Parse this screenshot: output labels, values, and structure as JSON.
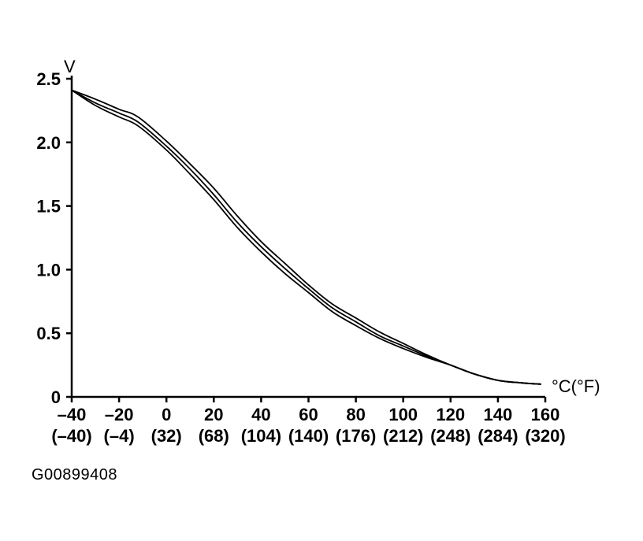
{
  "chart_data": {
    "type": "line",
    "y_unit": "V",
    "x_unit": "°C(°F)",
    "xlim": [
      -40,
      160
    ],
    "ylim": [
      0,
      2.5
    ],
    "x_ticks": [
      {
        "value": -40,
        "label": "–40",
        "sub": "(–40)"
      },
      {
        "value": -20,
        "label": "–20",
        "sub": "(–4)"
      },
      {
        "value": 0,
        "label": "0",
        "sub": "(32)"
      },
      {
        "value": 20,
        "label": "20",
        "sub": "(68)"
      },
      {
        "value": 40,
        "label": "40",
        "sub": "(104)"
      },
      {
        "value": 60,
        "label": "60",
        "sub": "(140)"
      },
      {
        "value": 80,
        "label": "80",
        "sub": "(176)"
      },
      {
        "value": 100,
        "label": "100",
        "sub": "(212)"
      },
      {
        "value": 120,
        "label": "120",
        "sub": "(248)"
      },
      {
        "value": 140,
        "label": "140",
        "sub": "(284)"
      },
      {
        "value": 160,
        "label": "160",
        "sub": "(320)"
      }
    ],
    "y_ticks": [
      {
        "value": 0,
        "label": "0"
      },
      {
        "value": 0.5,
        "label": "0.5"
      },
      {
        "value": 1.0,
        "label": "1.0"
      },
      {
        "value": 1.5,
        "label": "1.5"
      },
      {
        "value": 2.0,
        "label": "2.0"
      },
      {
        "value": 2.5,
        "label": "2.5"
      }
    ],
    "grid": false,
    "series": [
      {
        "x": [
          -40,
          -30,
          -20,
          -12,
          0,
          10,
          20,
          30,
          40,
          50,
          60,
          70,
          80,
          90,
          100,
          110,
          120,
          130,
          140,
          150,
          158
        ],
        "values": [
          2.41,
          2.34,
          2.26,
          2.2,
          2.01,
          1.83,
          1.64,
          1.42,
          1.22,
          1.05,
          0.88,
          0.73,
          0.62,
          0.51,
          0.42,
          0.33,
          0.25,
          0.18,
          0.13,
          0.11,
          0.1
        ]
      },
      {
        "x": [
          -40,
          -30,
          -20,
          -12,
          0,
          10,
          20,
          30,
          40,
          50,
          60,
          70,
          80,
          90,
          100,
          110,
          120,
          130,
          140,
          150,
          158
        ],
        "values": [
          2.41,
          2.31,
          2.23,
          2.16,
          1.97,
          1.79,
          1.59,
          1.37,
          1.18,
          1.01,
          0.85,
          0.7,
          0.59,
          0.48,
          0.4,
          0.32,
          0.25,
          0.18,
          0.13,
          0.11,
          0.1
        ]
      },
      {
        "x": [
          -40,
          -30,
          -20,
          -12,
          0,
          10,
          20,
          30,
          40,
          50,
          60,
          70,
          80,
          90,
          100,
          110,
          120,
          130,
          140,
          150,
          158
        ],
        "values": [
          2.41,
          2.29,
          2.2,
          2.13,
          1.94,
          1.75,
          1.55,
          1.33,
          1.14,
          0.97,
          0.82,
          0.67,
          0.56,
          0.46,
          0.38,
          0.31,
          0.25,
          0.18,
          0.13,
          0.11,
          0.1
        ]
      }
    ]
  },
  "caption": "G00899408"
}
